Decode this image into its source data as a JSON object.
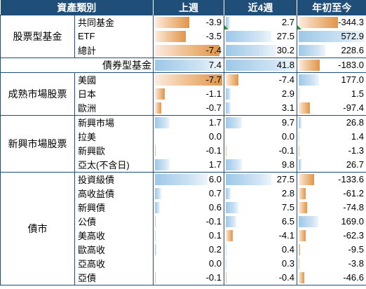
{
  "headers": [
    "資產類別",
    "上週",
    "近4週",
    "年初至今"
  ],
  "groups": [
    {
      "category": "股票型基金",
      "rows": [
        {
          "label": "共同基金",
          "values": [
            -3.9,
            2.7,
            -344.3
          ],
          "text": [
            "-3.9",
            "2.7",
            "-344.3"
          ]
        },
        {
          "label": "ETF",
          "values": [
            -3.5,
            27.5,
            572.9
          ],
          "text": [
            "-3.5",
            "27.5",
            "572.9"
          ]
        },
        {
          "label": "總計",
          "values": [
            -7.4,
            30.2,
            228.6
          ],
          "text": [
            "-7.4",
            "30.2",
            "228.6"
          ]
        }
      ]
    },
    {
      "category": "",
      "rows": [
        {
          "label": "債券型基金",
          "values": [
            7.4,
            41.8,
            -183.0
          ],
          "text": [
            "7.4",
            "41.8",
            "-183.0"
          ]
        }
      ]
    },
    {
      "category": "成熟市場股票",
      "rows": [
        {
          "label": "美國",
          "values": [
            -7.7,
            -7.4,
            177.0
          ],
          "text": [
            "-7.7",
            "-7.4",
            "177.0"
          ]
        },
        {
          "label": "日本",
          "values": [
            -1.1,
            2.9,
            1.5
          ],
          "text": [
            "-1.1",
            "2.9",
            "1.5"
          ]
        },
        {
          "label": "歐洲",
          "values": [
            -0.7,
            3.1,
            -97.4
          ],
          "text": [
            "-0.7",
            "3.1",
            "-97.4"
          ]
        }
      ]
    },
    {
      "category": "新興市場股票",
      "rows": [
        {
          "label": "新興市場",
          "values": [
            1.7,
            9.7,
            26.8
          ],
          "text": [
            "1.7",
            "9.7",
            "26.8"
          ]
        },
        {
          "label": "拉美",
          "values": [
            0.0,
            0.0,
            1.4
          ],
          "text": [
            "0.0",
            "0.0",
            "1.4"
          ]
        },
        {
          "label": "新興歐",
          "values": [
            -0.1,
            -0.1,
            -1.3
          ],
          "text": [
            "-0.1",
            "-0.1",
            "-1.3"
          ]
        },
        {
          "label": "亞太(不含日)",
          "values": [
            1.7,
            9.8,
            26.7
          ],
          "text": [
            "1.7",
            "9.8",
            "26.7"
          ]
        }
      ]
    },
    {
      "category": "債市",
      "rows": [
        {
          "label": "投資級債",
          "values": [
            6.0,
            27.5,
            -133.6
          ],
          "text": [
            "6.0",
            "27.5",
            "-133.6"
          ]
        },
        {
          "label": "高收益債",
          "values": [
            0.7,
            2.8,
            -61.2
          ],
          "text": [
            "0.7",
            "2.8",
            "-61.2"
          ]
        },
        {
          "label": "新興債",
          "values": [
            0.6,
            7.5,
            -74.8
          ],
          "text": [
            "0.6",
            "7.5",
            "-74.8"
          ]
        },
        {
          "label": "公債",
          "values": [
            -0.1,
            6.5,
            169.0
          ],
          "text": [
            "-0.1",
            "6.5",
            "169.0"
          ]
        },
        {
          "label": "美高收",
          "values": [
            0.1,
            -4.1,
            -62.3
          ],
          "text": [
            "0.1",
            "-4.1",
            "-62.3"
          ]
        },
        {
          "label": "歐高收",
          "values": [
            0.2,
            0.4,
            -9.5
          ],
          "text": [
            "0.2",
            "0.4",
            "-9.5"
          ]
        },
        {
          "label": "亞高收",
          "values": [
            0.0,
            0.3,
            -3.8
          ],
          "text": [
            "0.0",
            "0.3",
            "-3.8"
          ]
        },
        {
          "label": "亞債",
          "values": [
            -0.1,
            -0.4,
            -46.6
          ],
          "text": [
            "-0.1",
            "-0.4",
            "-46.6"
          ]
        }
      ]
    }
  ],
  "colors": {
    "header_bg": "#1f4e79",
    "header_text": "#ffffff",
    "positive_bar": "#9dc8e8",
    "negative_bar": "#e0954a",
    "border": "#1f4e79",
    "flag": "#2e8b3e"
  },
  "flags": [
    {
      "group": 0,
      "row": 0,
      "col": 1,
      "icon": "green-triangle-icon"
    },
    {
      "group": 0,
      "row": 0,
      "col": 2,
      "icon": "green-triangle-icon"
    }
  ]
}
